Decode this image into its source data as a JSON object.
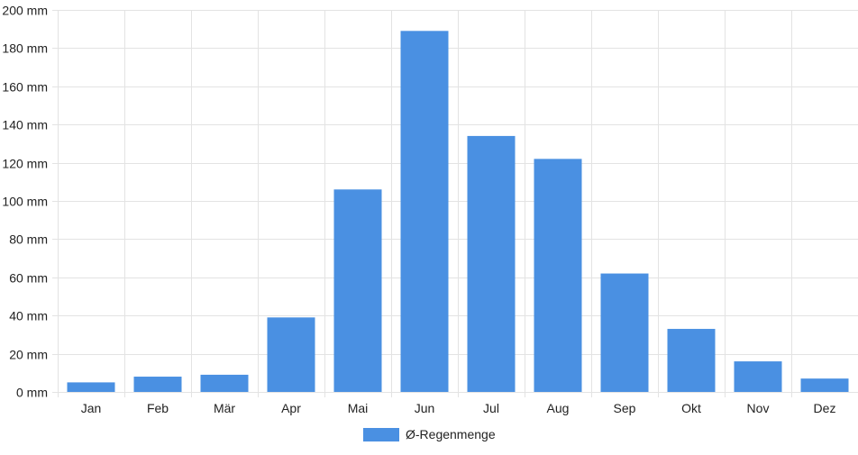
{
  "chart_data": {
    "type": "bar",
    "categories": [
      "Jan",
      "Feb",
      "Mär",
      "Apr",
      "Mai",
      "Jun",
      "Jul",
      "Aug",
      "Sep",
      "Okt",
      "Nov",
      "Dez"
    ],
    "series": [
      {
        "name": "Ø-Regenmenge",
        "values": [
          5,
          8,
          9,
          39,
          106,
          189,
          134,
          122,
          62,
          33,
          16,
          7
        ],
        "color": "#4a90e2"
      }
    ],
    "ylim": [
      0,
      200
    ],
    "ytick_values": [
      0,
      20,
      40,
      60,
      80,
      100,
      120,
      140,
      160,
      180,
      200
    ],
    "yunit": "mm",
    "grid": true,
    "legend": "bottom-center"
  }
}
